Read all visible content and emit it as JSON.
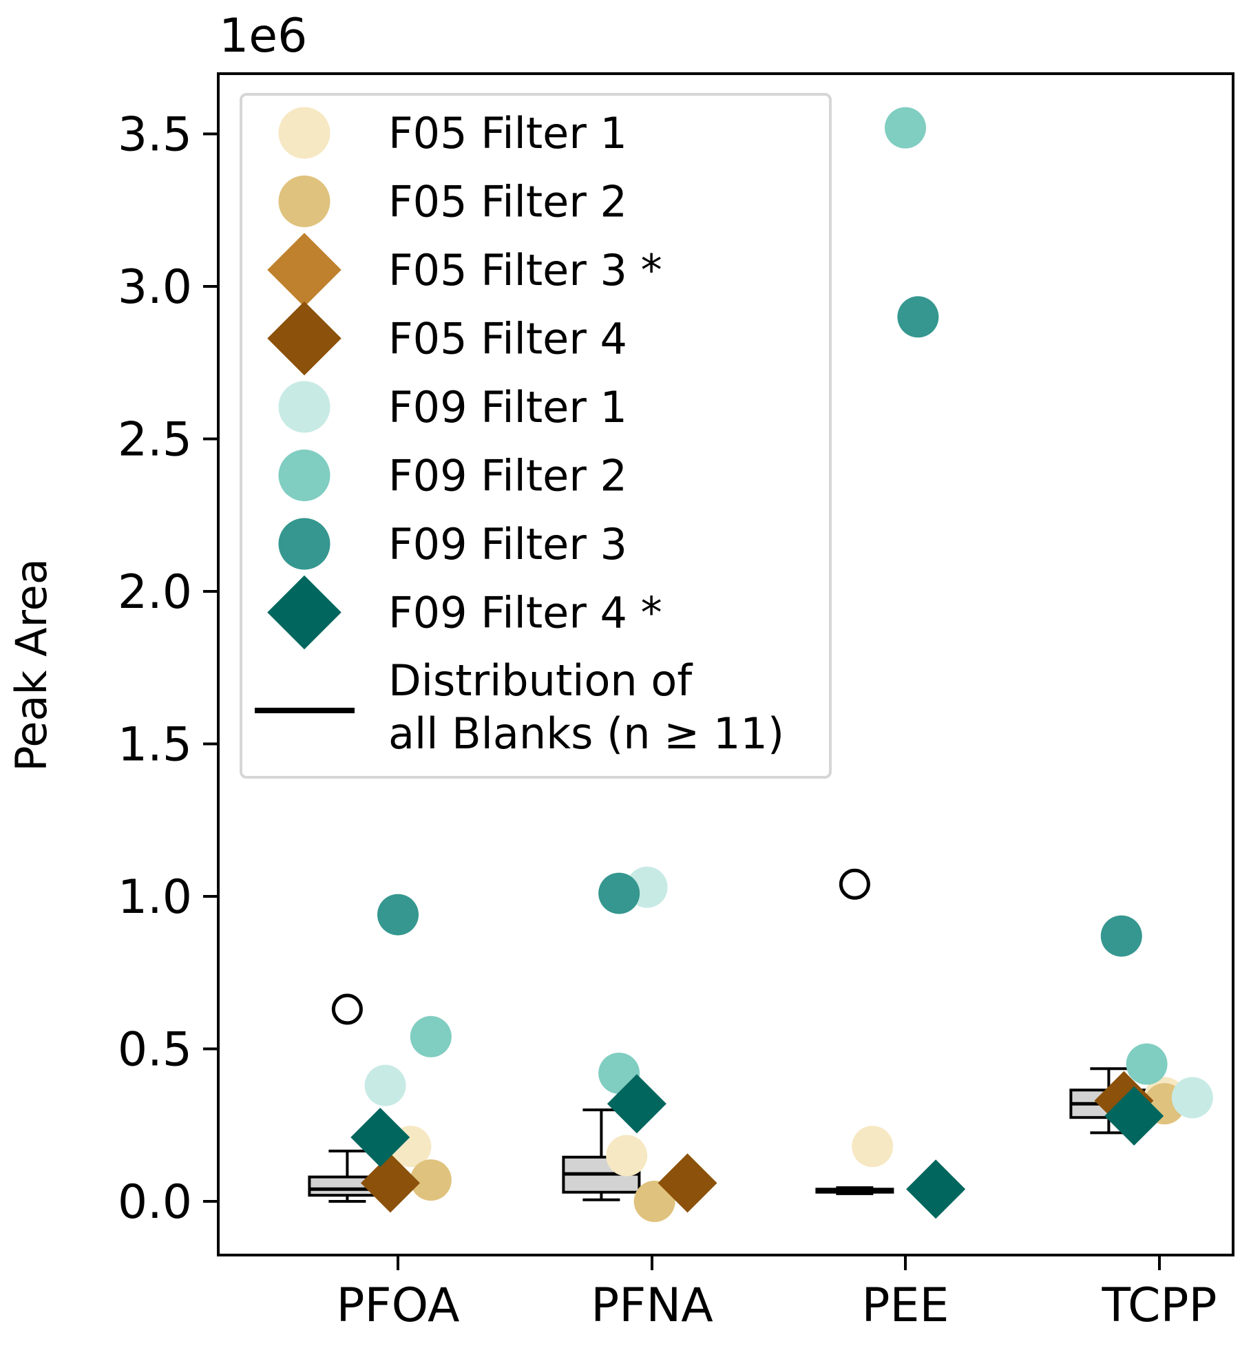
{
  "chart_data": {
    "type": "scatter",
    "title": "",
    "xlabel": "",
    "ylabel": "Peak Area",
    "y_scale_label": "1e6",
    "y_multiplier": 1000000,
    "categories": [
      "PFOA",
      "PFNA",
      "PEE",
      "TCPP"
    ],
    "ylim": [
      -0.18,
      3.68
    ],
    "yticks": [
      0.0,
      0.5,
      1.0,
      1.5,
      2.0,
      2.5,
      3.0,
      3.5
    ],
    "ytick_labels": [
      "0.0",
      "0.5",
      "1.0",
      "1.5",
      "2.0",
      "2.5",
      "3.0",
      "3.5"
    ],
    "grid": false,
    "legend_position": "top-left",
    "series": [
      {
        "name": "F05 Filter 1",
        "marker": "circle",
        "color": "#f6e8c3",
        "values": [
          0.18,
          0.15,
          0.18,
          0.34
        ],
        "x_offsets": [
          0.05,
          -0.1,
          -0.13,
          0.02
        ]
      },
      {
        "name": "F05 Filter 2",
        "marker": "circle",
        "color": "#dfc27d",
        "values": [
          0.07,
          0.0,
          null,
          0.32
        ],
        "x_offsets": [
          0.13,
          0.01,
          0,
          0.02
        ]
      },
      {
        "name": "F05 Filter 3 *",
        "marker": "diamond",
        "color": "#bf812d",
        "values": [
          null,
          null,
          null,
          null
        ],
        "x_offsets": [
          0,
          0,
          0,
          0
        ]
      },
      {
        "name": "F05 Filter 4",
        "marker": "diamond",
        "color": "#8c510a",
        "values": [
          0.06,
          0.06,
          null,
          0.33
        ],
        "x_offsets": [
          -0.03,
          0.14,
          0,
          -0.14
        ]
      },
      {
        "name": "F09 Filter 1",
        "marker": "circle",
        "color": "#c7eae5",
        "values": [
          0.38,
          1.03,
          null,
          0.34
        ],
        "x_offsets": [
          -0.05,
          -0.02,
          0,
          0.13
        ]
      },
      {
        "name": "F09 Filter 2",
        "marker": "circle",
        "color": "#80cdc1",
        "values": [
          0.54,
          0.42,
          3.52,
          0.45
        ],
        "x_offsets": [
          0.13,
          -0.13,
          0.0,
          -0.05
        ]
      },
      {
        "name": "F09 Filter 3",
        "marker": "circle",
        "color": "#35978f",
        "values": [
          0.94,
          1.01,
          2.9,
          0.87
        ],
        "x_offsets": [
          0.0,
          -0.13,
          0.05,
          -0.15
        ]
      },
      {
        "name": "F09 Filter 4 *",
        "marker": "diamond",
        "color": "#01665e",
        "values": [
          0.21,
          0.32,
          0.04,
          0.28
        ],
        "x_offsets": [
          -0.07,
          -0.06,
          0.12,
          -0.1
        ]
      }
    ],
    "blank_distribution": {
      "name": "Distribution of\nall Blanks (n ≥ 11)",
      "name_lines": [
        "Distribution of",
        "all Blanks (n ≥ 11)"
      ],
      "x_offset": -0.2,
      "boxes": [
        {
          "whislo": 0.0,
          "q1": 0.02,
          "med": 0.04,
          "q3": 0.08,
          "whishi": 0.165,
          "fliers": [
            0.63
          ]
        },
        {
          "whislo": 0.005,
          "q1": 0.03,
          "med": 0.09,
          "q3": 0.145,
          "whishi": 0.3,
          "fliers": []
        },
        {
          "whislo": 0.025,
          "q1": 0.03,
          "med": 0.035,
          "q3": 0.04,
          "whishi": 0.045,
          "fliers": [
            1.04
          ]
        },
        {
          "whislo": 0.225,
          "q1": 0.275,
          "med": 0.32,
          "q3": 0.365,
          "whishi": 0.435,
          "fliers": []
        }
      ]
    }
  },
  "colors": {
    "box_fill": "#d3d3d3",
    "axis": "#000000",
    "legend_border": "#d6d6d6"
  }
}
